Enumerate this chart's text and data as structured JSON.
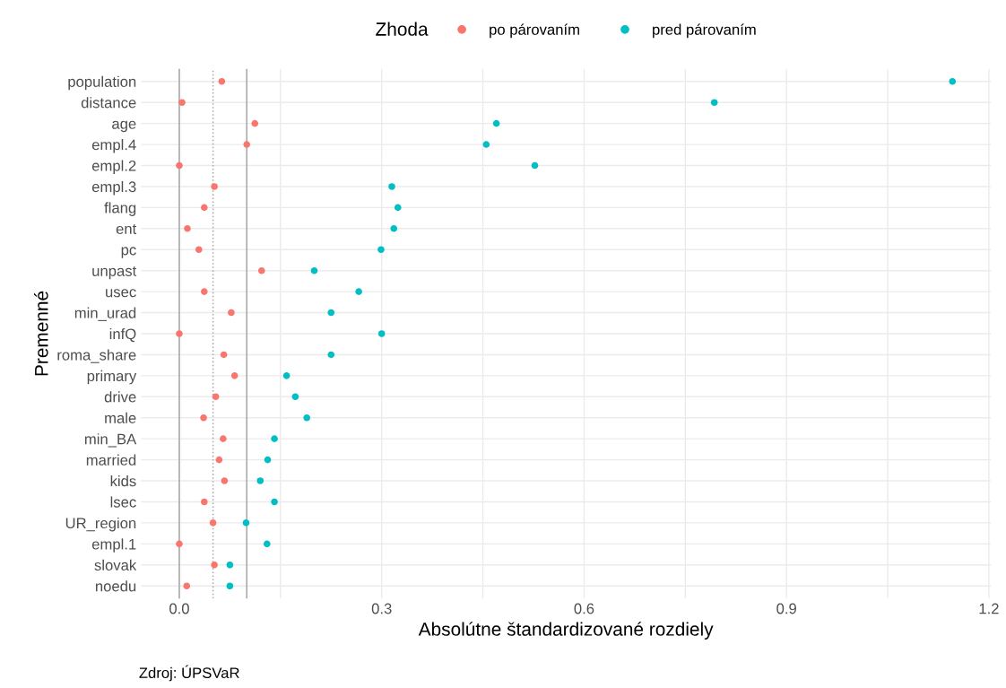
{
  "chart_data": {
    "type": "scatter",
    "xlabel": "Absolútne štandardizované rozdiely",
    "ylabel": "Premenné",
    "legend_title": "Zhoda",
    "legend": "top",
    "grid": true,
    "orientation": "horizontal",
    "marker": "circle",
    "categories": [
      "population",
      "distance",
      "age",
      "empl.4",
      "empl.2",
      "empl.3",
      "flang",
      "ent",
      "pc",
      "unpast",
      "usec",
      "min_urad",
      "infQ",
      "roma_share",
      "primary",
      "drive",
      "male",
      "min_BA",
      "married",
      "kids",
      "lsec",
      "UR_region",
      "empl.1",
      "slovak",
      "noedu"
    ],
    "series": [
      {
        "name": "po párovaním",
        "color": "#f8766d",
        "values": [
          0.063,
          0.004,
          0.112,
          0.1,
          0.0,
          0.052,
          0.037,
          0.012,
          0.029,
          0.122,
          0.037,
          0.077,
          0.0,
          0.066,
          0.082,
          0.054,
          0.036,
          0.065,
          0.059,
          0.067,
          0.037,
          0.05,
          0.0,
          0.052,
          0.011
        ]
      },
      {
        "name": "pred párovaním",
        "color": "#00bfc4",
        "values": [
          1.146,
          0.793,
          0.47,
          0.455,
          0.527,
          0.315,
          0.324,
          0.318,
          0.299,
          0.2,
          0.266,
          0.225,
          0.3,
          0.225,
          0.159,
          0.172,
          0.189,
          0.141,
          0.131,
          0.12,
          0.141,
          0.099,
          0.13,
          0.075,
          0.075
        ]
      }
    ],
    "xlim": [
      -0.057,
      1.203
    ],
    "xticks": [
      {
        "value": 0.0,
        "label": "0.0"
      },
      {
        "value": 0.15,
        "label": null
      },
      {
        "value": 0.3,
        "label": "0.3"
      },
      {
        "value": 0.45,
        "label": null
      },
      {
        "value": 0.6,
        "label": "0.6"
      },
      {
        "value": 0.75,
        "label": null
      },
      {
        "value": 0.9,
        "label": "0.9"
      },
      {
        "value": 1.05,
        "label": null
      },
      {
        "value": 1.2,
        "label": "1.2"
      }
    ],
    "ref_lines": [
      {
        "axis": "x",
        "value": 0,
        "label": null,
        "color": "#a6a6a6",
        "line_style": "solid"
      },
      {
        "axis": "x",
        "value": 0.05,
        "label": null,
        "color": "#a6a6a6",
        "line_style": "dotted"
      },
      {
        "axis": "x",
        "value": 0.1,
        "label": null,
        "color": "#a6a6a6",
        "line_style": "solid"
      }
    ],
    "annotations": [
      "Zdroj: ÚPSVaR"
    ]
  }
}
